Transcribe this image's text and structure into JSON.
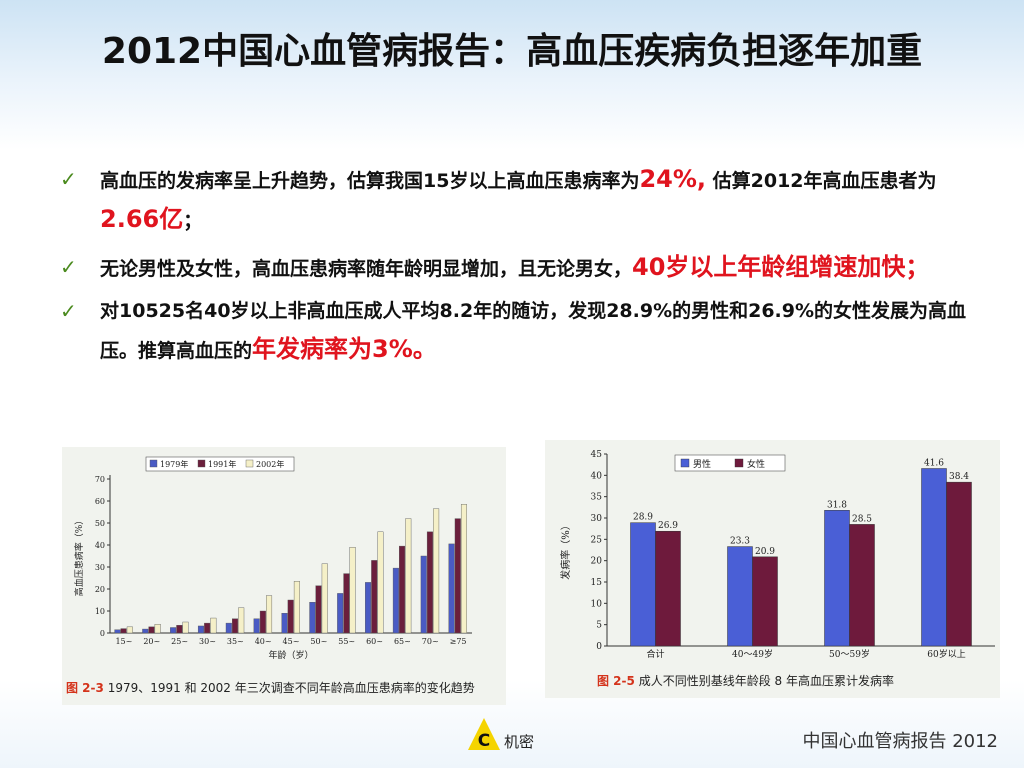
{
  "title": "2012中国心血管病报告：高血压疾病负担逐年加重",
  "bullets": {
    "b1": {
      "t1": "高血压的发病率呈上升趋势，估算我国15岁以上高血压患病率为",
      "h1": "24%,",
      "t2": " 估算2012年高血压患者为",
      "h2": "2.66亿",
      "t3": "；"
    },
    "b2": {
      "t1": "无论男性及女性，高血压患病率随年龄明显增加，且无论男女，",
      "h1": "40岁以上年龄组增速加快；"
    },
    "b3": {
      "t1": "对10525名40岁以上非高血压成人平均8.2年的随访，发现28.9%的男性和26.9%的女性发展为高血压。推算高血压的",
      "h1": "年发病率为3%。"
    }
  },
  "figure1": {
    "caption_num": "图 2-3",
    "caption_text": "1979、1991 和 2002 年三次调查不同年龄高血压患病率的变化趋势"
  },
  "figure2": {
    "caption_num": "图 2-5",
    "caption_text": "成人不同性别基线年龄段 8 年高血压累计发病率"
  },
  "footer": {
    "logo_letter": "C",
    "logo_label": "机密",
    "report": "中国心血管病报告 2012"
  },
  "icons": {
    "check": "check-icon",
    "logo": "warning-triangle-logo-icon"
  },
  "colors": {
    "accent_red": "#e0141e",
    "check": "#4a8a1e",
    "series_1979": "#4a5bc4",
    "series_1991": "#6b1f3c",
    "series_2002": "#f5f0c8",
    "male": "#4a5fd6",
    "female": "#6e1a3c"
  },
  "chart_data": [
    {
      "type": "bar",
      "ylabel": "高血压患病率（%）",
      "xlabel": "年龄（岁）",
      "ylim": [
        0,
        70
      ],
      "yticks": [
        "0",
        "10",
        "20",
        "30",
        "40",
        "50",
        "60",
        "70"
      ],
      "legend": "top-left",
      "categories": [
        "15~",
        "20~",
        "25~",
        "30~",
        "35~",
        "40~",
        "45~",
        "50~",
        "55~",
        "60~",
        "65~",
        "70~",
        "≥75"
      ],
      "series": [
        {
          "name": "1979年",
          "values": [
            1.5,
            1.8,
            2.5,
            3.2,
            4.5,
            6.5,
            9,
            14,
            18,
            23,
            29.5,
            35,
            40.5
          ]
        },
        {
          "name": "1991年",
          "values": [
            2,
            2.8,
            3.5,
            4.5,
            6.5,
            10,
            15,
            21.5,
            27,
            33,
            39.5,
            46,
            52
          ]
        },
        {
          "name": "2002年",
          "values": [
            2.8,
            4,
            5,
            6.8,
            11.5,
            17,
            23.5,
            31.5,
            39,
            46,
            52,
            56.5,
            58.5
          ]
        }
      ]
    },
    {
      "type": "bar",
      "ylabel": "发病率（%）",
      "ylim": [
        0,
        45
      ],
      "yticks": [
        "0",
        "5",
        "10",
        "15",
        "20",
        "25",
        "30",
        "35",
        "40",
        "45"
      ],
      "legend": "top-center",
      "categories": [
        "合计",
        "40～49岁",
        "50～59岁",
        "60岁以上"
      ],
      "series": [
        {
          "name": "男性",
          "values": [
            28.9,
            23.3,
            31.8,
            41.6
          ],
          "labels": [
            "28.9",
            "23.3",
            "31.8",
            "41.6"
          ]
        },
        {
          "name": "女性",
          "values": [
            26.9,
            20.9,
            28.5,
            38.4
          ],
          "labels": [
            "26.9",
            "20.9",
            "28.5",
            "38.4"
          ]
        }
      ]
    }
  ]
}
